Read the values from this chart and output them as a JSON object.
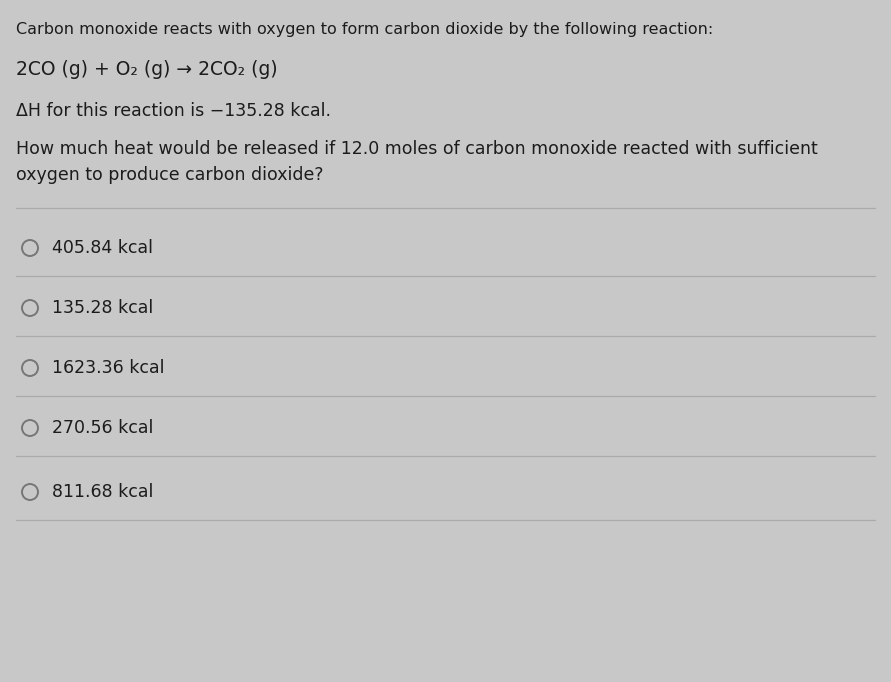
{
  "bg_color": "#c8c8c8",
  "text_color": "#1c1c1c",
  "title_line": "Carbon monoxide reacts with oxygen to form carbon dioxide by the following reaction:",
  "reaction_line": "2CO (g) + O₂ (g) → 2CO₂ (g)",
  "delta_h_line": "ΔH for this reaction is −135.28 kcal.",
  "question_line1": "How much heat would be released if 12.0 moles of carbon monoxide reacted with sufficient",
  "question_line2": "oxygen to produce carbon dioxide?",
  "options": [
    "405.84 kcal",
    "135.28 kcal",
    "1623.36 kcal",
    "270.56 kcal",
    "811.68 kcal"
  ],
  "separator_color": "#aaaaaa",
  "circle_edge_color": "#777777",
  "title_fontsize": 11.5,
  "reaction_fontsize": 13.5,
  "body_fontsize": 12.5,
  "option_fontsize": 12.5,
  "fig_width": 8.91,
  "fig_height": 6.82,
  "dpi": 100
}
